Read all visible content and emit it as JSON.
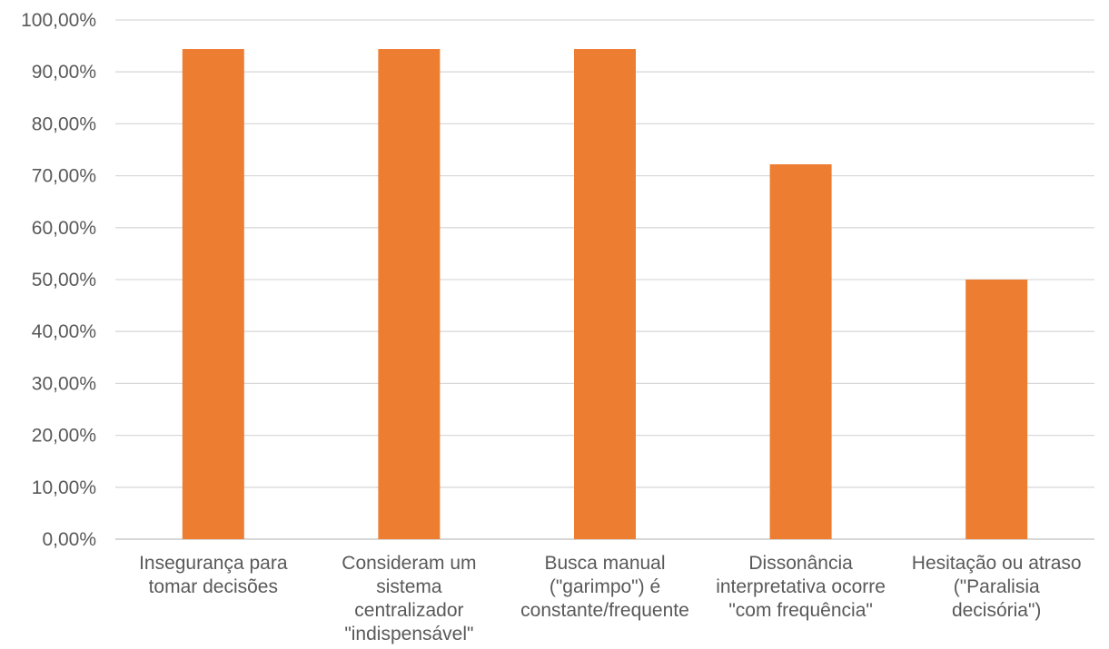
{
  "chart_data": {
    "type": "bar",
    "categories": [
      [
        "Insegurança para",
        "tomar decisões"
      ],
      [
        "Consideram um",
        "sistema",
        "centralizador",
        "\"indispensável\""
      ],
      [
        "Busca manual",
        "(\"garimpo\") é",
        "constante/frequente"
      ],
      [
        "Dissonância",
        "interpretativa ocorre",
        "\"com frequência\""
      ],
      [
        "Hesitação ou atraso",
        "(\"Paralisia",
        "decisória\")"
      ]
    ],
    "values": [
      94.4,
      94.4,
      94.4,
      72.2,
      50.0
    ],
    "ylim": [
      0,
      100
    ],
    "yticks": [
      "0,00%",
      "10,00%",
      "20,00%",
      "30,00%",
      "40,00%",
      "50,00%",
      "60,00%",
      "70,00%",
      "80,00%",
      "90,00%",
      "100,00%"
    ],
    "grid": true,
    "bar_color": "#ed7d31"
  }
}
